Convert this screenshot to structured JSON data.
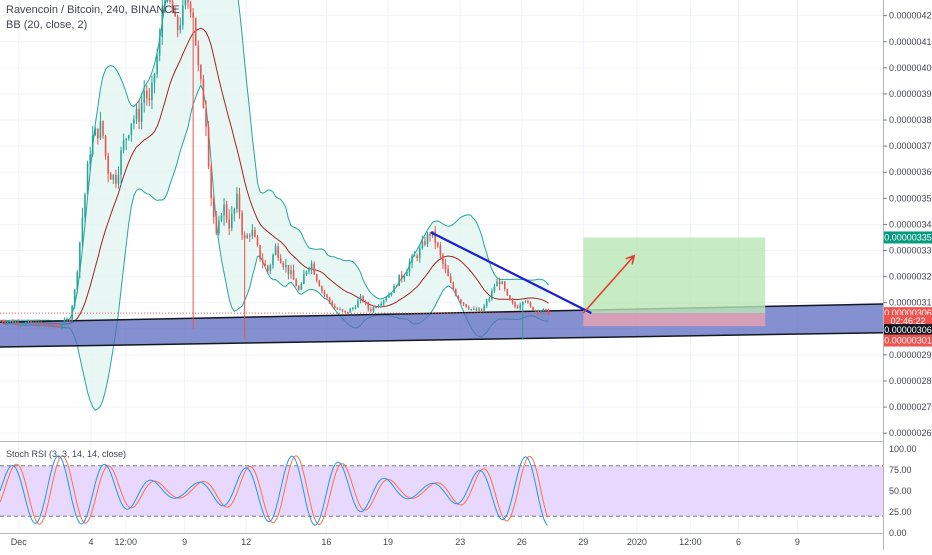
{
  "header": {
    "symbol_title": "Ravencoin / Bitcoin, 240, BINANCE",
    "indicator_label": "BB (20, close, 2)",
    "rsi_label": "Stoch RSI (3, 3, 14, 14, close)"
  },
  "colors": {
    "bull": "#26a69a",
    "bear": "#ef5350",
    "bb_line": "#26a69a",
    "bb_fill": "#e0f3f0",
    "bb_mid": "#a12626",
    "trend_line": "#1d1fd1",
    "channel_fill": "#5c6bc0",
    "target_box": "#b9e6b4",
    "stop_box": "#e8a2b0",
    "arrow": "#e53935",
    "rsi_bg": "#e9d8fd",
    "rsi_k": "#2196f3",
    "rsi_d": "#ff7043"
  },
  "chart_data": {
    "type": "candlestick",
    "title": "Ravencoin / Bitcoin, 240, BINANCE",
    "y_axis": {
      "ticks": [
        "0.00000420",
        "0.00000410",
        "0.00000400",
        "0.00000390",
        "0.00000380",
        "0.00000370",
        "0.00000360",
        "0.00000350",
        "0.00000340",
        "0.00000330",
        "0.00000320",
        "0.00000310",
        "0.00000300",
        "0.00000290",
        "0.00000280",
        "0.00000270",
        "0.00000260"
      ],
      "tick_values": [
        420,
        410,
        400,
        390,
        380,
        370,
        360,
        350,
        340,
        330,
        320,
        310,
        300,
        290,
        280,
        270,
        260
      ],
      "unit_scale": "1e-9 BTC",
      "range": [
        257,
        426
      ]
    },
    "x_axis": {
      "ticks": [
        "Dec",
        "4",
        "12:00",
        "9",
        "12",
        "16",
        "19",
        "23",
        "26",
        "29",
        "2020",
        "12:00",
        "6",
        "9"
      ],
      "tick_values": [
        7,
        34,
        47,
        69,
        92,
        122,
        145,
        172,
        195,
        218,
        238,
        258,
        276,
        298
      ],
      "range": [
        0,
        330
      ]
    },
    "price_tags": [
      {
        "label": "0.00000335",
        "value": 335.0,
        "color": "#089981"
      },
      {
        "label": "0.00000306",
        "value": 306.0,
        "color": "#ef5350"
      },
      {
        "label": "02:46:22",
        "value": 303.0,
        "color": "#ef5350"
      },
      {
        "label": "0.00000306",
        "value": 299.5,
        "color": "#131722"
      },
      {
        "label": "0.00000301",
        "value": 295.5,
        "color": "#ef5350"
      }
    ],
    "candle_count": 214,
    "trend_line": {
      "x": [
        161,
        221
      ],
      "y": [
        337,
        306
      ]
    },
    "channel": {
      "upper": {
        "x": [
          0,
          330
        ],
        "y": [
          302.5,
          309.5
        ]
      },
      "lower": {
        "x": [
          0,
          330
        ],
        "y": [
          293.0,
          298.5
        ]
      }
    },
    "long_position": {
      "x": [
        218,
        286
      ],
      "entry": 306,
      "target": 335,
      "stop": 301
    },
    "projection_arrow": {
      "x": [
        218,
        237
      ],
      "y": [
        306,
        328
      ]
    },
    "rsi_axis": {
      "ticks": [
        "100.00",
        "75.00",
        "50.00",
        "25.00",
        "0.00"
      ],
      "tick_values": [
        100,
        75,
        50,
        25,
        0
      ],
      "band": [
        20,
        80
      ]
    }
  }
}
